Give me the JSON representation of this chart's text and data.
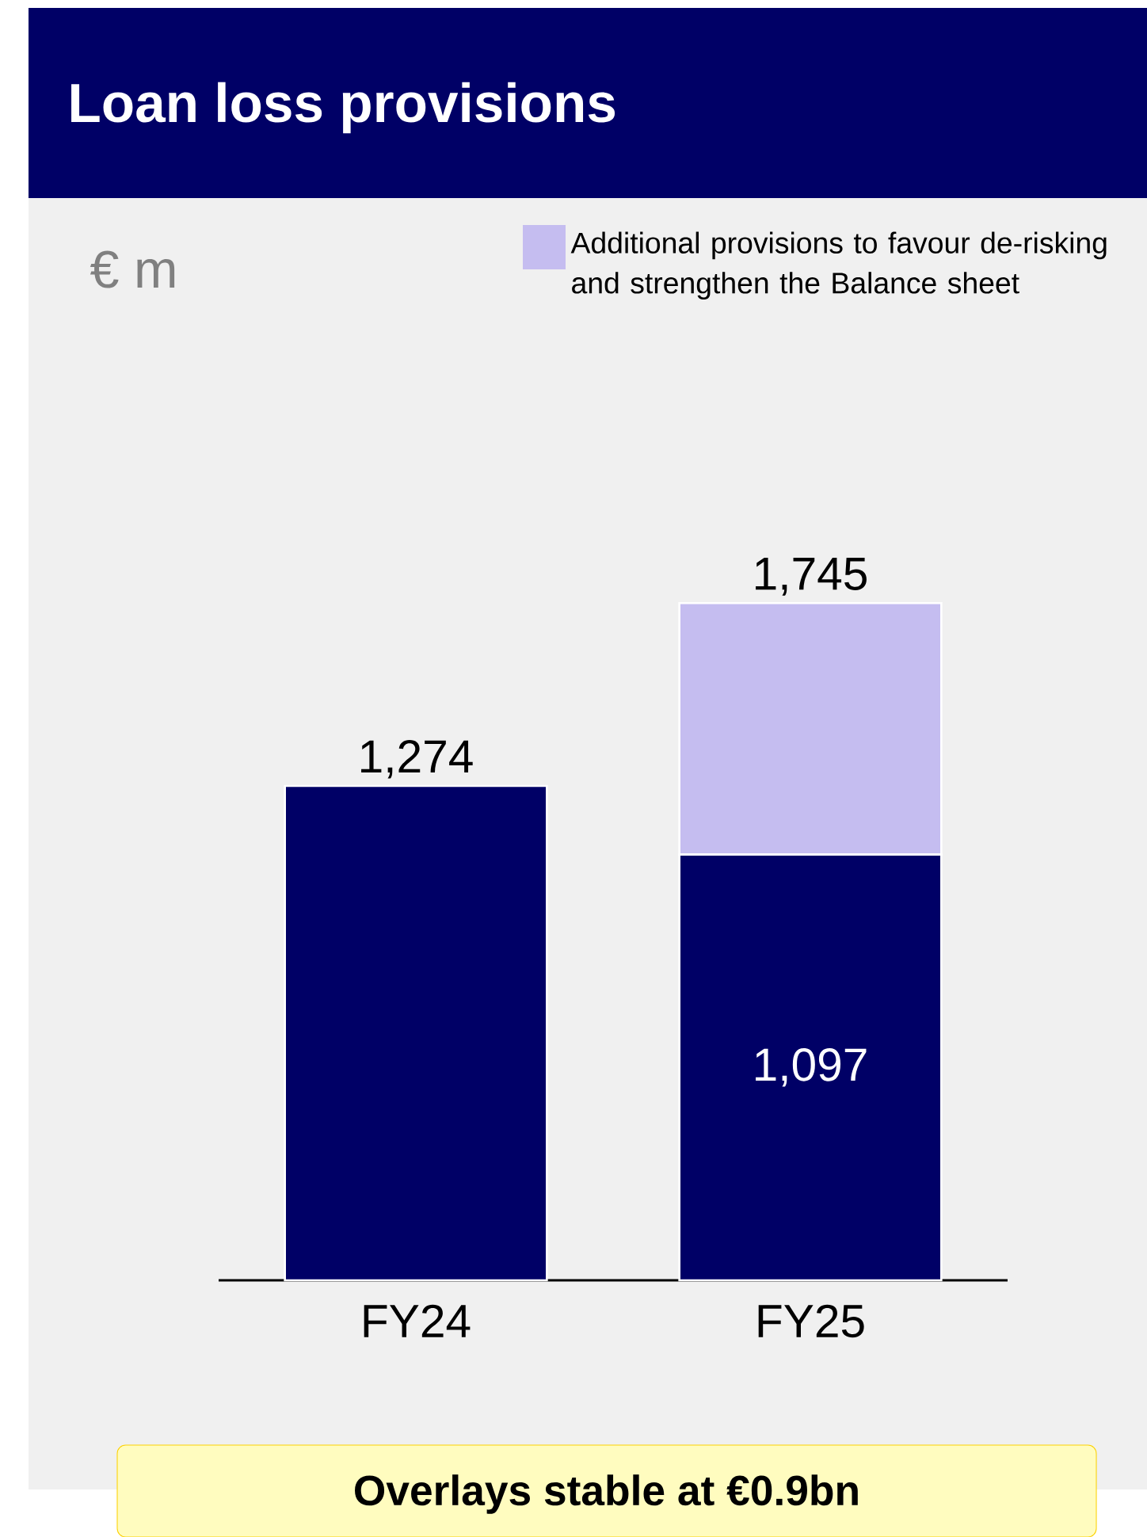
{
  "chart_data": {
    "type": "bar",
    "title": "Loan loss provisions",
    "categories": [
      "FY24",
      "FY25"
    ],
    "stacked": true,
    "legend": "top right",
    "series": [
      {
        "color": "#000066",
        "values": [
          1274,
          1097
        ],
        "value_labels": [
          "1,274",
          "1,097"
        ]
      },
      {
        "name": "Additional provisions to favour de-risking and strengthen the Balance sheet",
        "color": "#c5bdf0",
        "values": [
          0,
          648
        ]
      }
    ],
    "totals": [
      null,
      "1,745"
    ],
    "annotations": [
      "€ m",
      "Overlays stable at €0.9bn"
    ]
  }
}
